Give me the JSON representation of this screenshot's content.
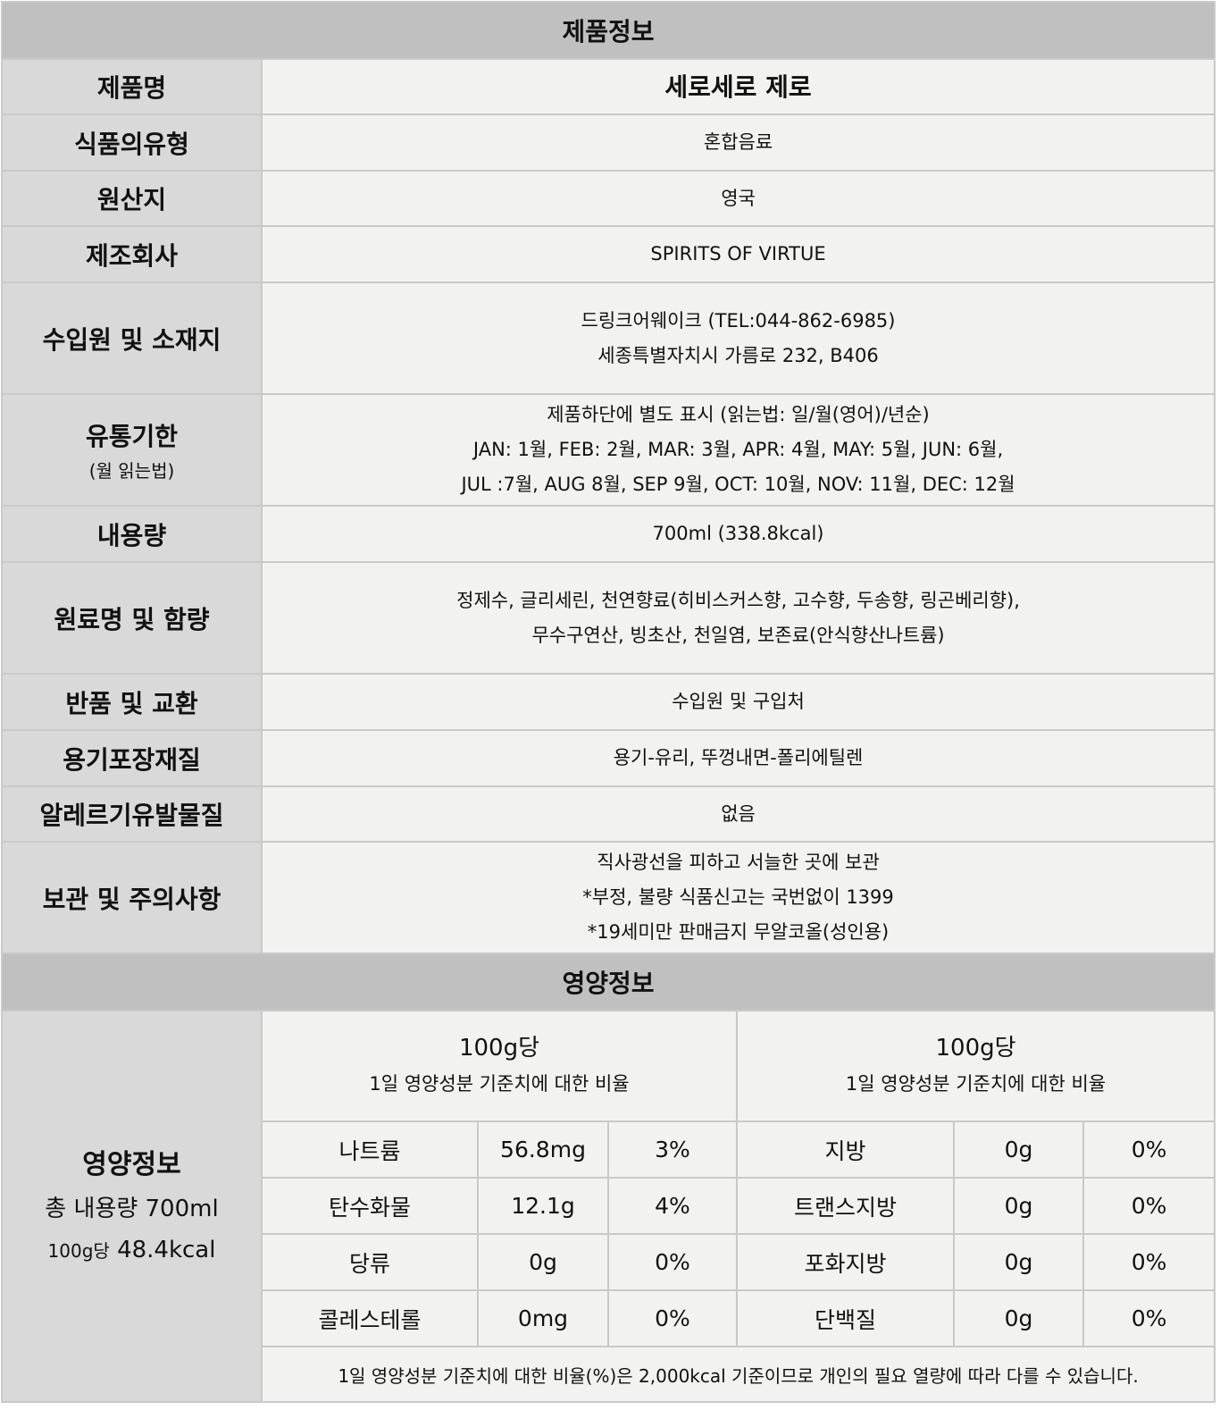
{
  "product_info": {
    "title": "제품정보",
    "rows": [
      {
        "label": "제품명",
        "lines": [
          "세로세로 제로"
        ]
      },
      {
        "label": "식품의유형",
        "lines": [
          "혼합음료"
        ]
      },
      {
        "label": "원산지",
        "lines": [
          "영국"
        ]
      },
      {
        "label": "제조회사",
        "lines": [
          "SPIRITS OF VIRTUE"
        ]
      },
      {
        "label": "수입원 및 소재지",
        "lines": [
          "드링크어웨이크 (TEL:044-862-6985)",
          "세종특별자치시 가름로 232, B406"
        ]
      },
      {
        "label": "유통기한",
        "sublabel": "(월 읽는법)",
        "lines": [
          "제품하단에 별도 표시 (읽는법: 일/월(영어)/년순)",
          "JAN: 1월, FEB: 2월, MAR: 3월, APR: 4월, MAY: 5월, JUN: 6월,",
          "JUL :7월, AUG 8월, SEP 9월, OCT: 10월, NOV: 11월, DEC: 12월"
        ]
      },
      {
        "label": "내용량",
        "lines": [
          "700ml (338.8kcal)"
        ]
      },
      {
        "label": "원료명 및 함량",
        "lines": [
          "정제수, 글리세린, 천연향료(히비스커스향, 고수향, 두송향, 링곤베리향),",
          "무수구연산, 빙초산, 천일염, 보존료(안식향산나트륨)"
        ]
      },
      {
        "label": "반품 및 교환",
        "lines": [
          "수입원 및 구입처"
        ]
      },
      {
        "label": "용기포장재질",
        "lines": [
          "용기-유리, 뚜껑내면-폴리에틸렌"
        ]
      },
      {
        "label": "알레르기유발물질",
        "lines": [
          "없음"
        ]
      },
      {
        "label": "보관 및 주의사항",
        "lines": [
          "직사광선을 피하고 서늘한 곳에 보관",
          "*부정, 불량 식품신고는 국번없이 1399",
          "*19세미만 판매금지 무알코올(성인용)"
        ]
      }
    ]
  },
  "nutrition": {
    "title": "영양정보",
    "side_title": "영양정보",
    "total": "총 내용량 700ml",
    "per_prefix": "100g당",
    "per_kcal": "48.4kcal",
    "col_header": {
      "per": "100g당",
      "desc": "1일 영양성분 기준치에 대한 비율"
    },
    "rows": [
      [
        {
          "name": "나트륨",
          "amount": "56.8mg",
          "pct": "3%"
        },
        {
          "name": "지방",
          "amount": "0g",
          "pct": "0%"
        }
      ],
      [
        {
          "name": "탄수화물",
          "amount": "12.1g",
          "pct": "4%"
        },
        {
          "name": "트랜스지방",
          "amount": "0g",
          "pct": "0%"
        }
      ],
      [
        {
          "name": "당류",
          "amount": "0g",
          "pct": "0%"
        },
        {
          "name": "포화지방",
          "amount": "0g",
          "pct": "0%"
        }
      ],
      [
        {
          "name": "콜레스테롤",
          "amount": "0mg",
          "pct": "0%"
        },
        {
          "name": "단백질",
          "amount": "0g",
          "pct": "0%"
        }
      ]
    ],
    "footnote": "1일 영양성분 기준치에 대한 비율(%)은 2,000kcal 기준이므로 개인의 필요 열량에 따라 다를 수 있습니다."
  },
  "colors": {
    "header_bg": "#c0c0c0",
    "label_bg": "#d9d9d9",
    "value_bg": "#f2f2f0",
    "border": "#c9c9c9"
  }
}
